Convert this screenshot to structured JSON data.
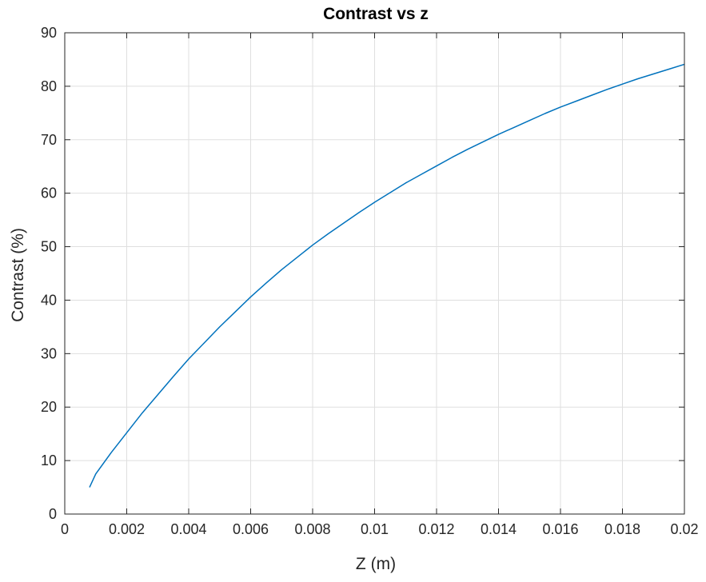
{
  "chart_data": {
    "type": "line",
    "title": "Contrast vs z",
    "xlabel": "Z (m)",
    "ylabel": "Contrast (%)",
    "xlim": [
      0,
      0.02
    ],
    "ylim": [
      0,
      90
    ],
    "xticks": [
      0,
      0.002,
      0.004,
      0.006,
      0.008,
      0.01,
      0.012,
      0.014,
      0.016,
      0.018,
      0.02
    ],
    "xtick_labels": [
      "0",
      "0.002",
      "0.004",
      "0.006",
      "0.008",
      "0.01",
      "0.012",
      "0.014",
      "0.016",
      "0.018",
      "0.02"
    ],
    "yticks": [
      0,
      10,
      20,
      30,
      40,
      50,
      60,
      70,
      80,
      90
    ],
    "ytick_labels": [
      "0",
      "10",
      "20",
      "30",
      "40",
      "50",
      "60",
      "70",
      "80",
      "90"
    ],
    "grid": true,
    "legend": "none",
    "series": [
      {
        "color": "#0072BD",
        "x": [
          0.0008,
          0.001,
          0.0015,
          0.002,
          0.0025,
          0.003,
          0.0035,
          0.004,
          0.0045,
          0.005,
          0.0055,
          0.006,
          0.0065,
          0.007,
          0.0075,
          0.008,
          0.0085,
          0.009,
          0.0095,
          0.01,
          0.0105,
          0.011,
          0.0115,
          0.012,
          0.0125,
          0.013,
          0.0135,
          0.014,
          0.0145,
          0.015,
          0.0155,
          0.016,
          0.0165,
          0.017,
          0.0175,
          0.018,
          0.0185,
          0.019,
          0.0195,
          0.02
        ],
        "y": [
          5.0,
          7.5,
          11.5,
          15.2,
          18.9,
          22.3,
          25.7,
          29.0,
          32.0,
          35.0,
          37.8,
          40.6,
          43.2,
          45.7,
          48.0,
          50.3,
          52.4,
          54.4,
          56.4,
          58.3,
          60.1,
          61.9,
          63.5,
          65.1,
          66.7,
          68.2,
          69.6,
          71.0,
          72.3,
          73.6,
          74.9,
          76.1,
          77.2,
          78.3,
          79.4,
          80.4,
          81.4,
          82.3,
          83.2,
          84.1
        ]
      }
    ]
  }
}
